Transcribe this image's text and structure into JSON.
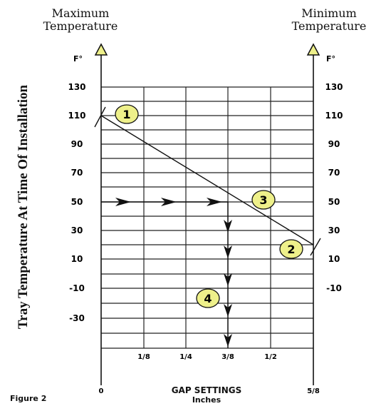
{
  "header": {
    "max_line1": "Maximum",
    "max_line2": "Temperature",
    "min_line1": "Minimum",
    "min_line2": "Temperature"
  },
  "y_axis_title": "Tray Temperature At Time Of Installation",
  "unit_left": "F°",
  "unit_right": "F°",
  "y_ticks": [
    "130",
    "110",
    "90",
    "70",
    "50",
    "30",
    "10",
    "-10",
    "-30"
  ],
  "y_ticks_right": [
    "130",
    "110",
    "90",
    "70",
    "50",
    "30",
    "10",
    "-10"
  ],
  "x_ticks": [
    "1/8",
    "1/4",
    "3/8",
    "1/2"
  ],
  "x_end_left": "0",
  "x_end_right": "5/8",
  "x_title": "GAP SETTINGS",
  "x_units": "Inches",
  "figure_caption": "Figure 2",
  "callouts": [
    "1",
    "2",
    "3",
    "4"
  ],
  "colors": {
    "callout_fill": "#eef08a",
    "line": "#111111",
    "grid": "#222222"
  }
}
